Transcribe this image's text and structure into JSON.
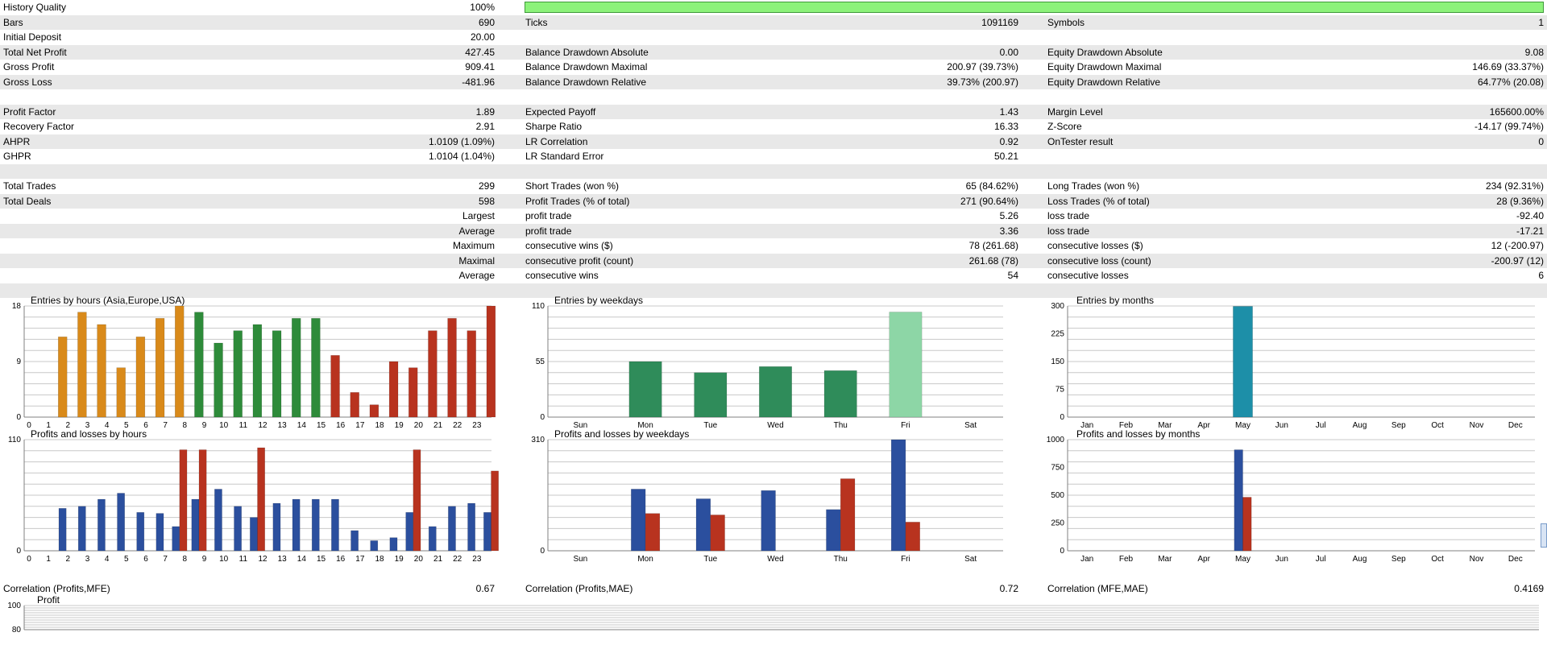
{
  "stats": {
    "history_quality": {
      "label": "History Quality",
      "value": "100%",
      "fraction": 1.0
    },
    "rows": [
      {
        "shade": false,
        "c1": "",
        "v1": "",
        "c2": "",
        "v2": "",
        "c3": "",
        "v3": ""
      },
      {
        "shade": true,
        "c1": "Bars",
        "v1": "690",
        "c2": "Ticks",
        "v2": "1091169",
        "c3": "Symbols",
        "v3": "1"
      },
      {
        "shade": false,
        "c1": "Initial Deposit",
        "v1": "20.00",
        "c2": "",
        "v2": "",
        "c3": "",
        "v3": ""
      },
      {
        "shade": true,
        "c1": "Total Net Profit",
        "v1": "427.45",
        "c2": "Balance Drawdown Absolute",
        "v2": "0.00",
        "c3": "Equity Drawdown Absolute",
        "v3": "9.08"
      },
      {
        "shade": false,
        "c1": "Gross Profit",
        "v1": "909.41",
        "c2": "Balance Drawdown Maximal",
        "v2": "200.97 (39.73%)",
        "c3": "Equity Drawdown Maximal",
        "v3": "146.69 (33.37%)"
      },
      {
        "shade": true,
        "c1": "Gross Loss",
        "v1": "-481.96",
        "c2": "Balance Drawdown Relative",
        "v2": "39.73% (200.97)",
        "c3": "Equity Drawdown Relative",
        "v3": "64.77% (20.08)"
      },
      {
        "shade": false,
        "c1": "",
        "v1": "",
        "c2": "",
        "v2": "",
        "c3": "",
        "v3": ""
      },
      {
        "shade": true,
        "c1": "Profit Factor",
        "v1": "1.89",
        "c2": "Expected Payoff",
        "v2": "1.43",
        "c3": "Margin Level",
        "v3": "165600.00%"
      },
      {
        "shade": false,
        "c1": "Recovery Factor",
        "v1": "2.91",
        "c2": "Sharpe Ratio",
        "v2": "16.33",
        "c3": "Z-Score",
        "v3": "-14.17 (99.74%)"
      },
      {
        "shade": true,
        "c1": "AHPR",
        "v1": "1.0109 (1.09%)",
        "c2": "LR Correlation",
        "v2": "0.92",
        "c3": "OnTester result",
        "v3": "0"
      },
      {
        "shade": false,
        "c1": "GHPR",
        "v1": "1.0104 (1.04%)",
        "c2": "LR Standard Error",
        "v2": "50.21",
        "c3": "",
        "v3": ""
      },
      {
        "shade": true,
        "c1": "",
        "v1": "",
        "c2": "",
        "v2": "",
        "c3": "",
        "v3": ""
      },
      {
        "shade": false,
        "c1": "Total Trades",
        "v1": "299",
        "c2": "Short Trades (won %)",
        "v2": "65 (84.62%)",
        "c3": "Long Trades (won %)",
        "v3": "234 (92.31%)"
      },
      {
        "shade": true,
        "c1": "Total Deals",
        "v1": "598",
        "c2": "Profit Trades (% of total)",
        "v2": "271 (90.64%)",
        "c3": "Loss Trades (% of total)",
        "v3": "28 (9.36%)"
      },
      {
        "shade": false,
        "c1": "",
        "v1": "Largest",
        "c2": "profit trade",
        "v2": "5.26",
        "c3": "loss trade",
        "v3": "-92.40"
      },
      {
        "shade": true,
        "c1": "",
        "v1": "Average",
        "c2": "profit trade",
        "v2": "3.36",
        "c3": "loss trade",
        "v3": "-17.21"
      },
      {
        "shade": false,
        "c1": "",
        "v1": "Maximum",
        "c2": "consecutive wins ($)",
        "v2": "78 (261.68)",
        "c3": "consecutive losses ($)",
        "v3": "12 (-200.97)"
      },
      {
        "shade": true,
        "c1": "",
        "v1": "Maximal",
        "c2": "consecutive profit (count)",
        "v2": "261.68 (78)",
        "c3": "consecutive loss (count)",
        "v3": "-200.97 (12)"
      },
      {
        "shade": false,
        "c1": "",
        "v1": "Average",
        "c2": "consecutive wins",
        "v2": "54",
        "c3": "consecutive losses",
        "v3": "6"
      },
      {
        "shade": true,
        "c1": "",
        "v1": "",
        "c2": "",
        "v2": "",
        "c3": "",
        "v3": ""
      }
    ]
  },
  "correlation": {
    "mfe_label": "Correlation (Profits,MFE)",
    "mfe_value": "0.67",
    "mae_label": "Correlation (Profits,MAE)",
    "mae_value": "0.72",
    "mfe_mae_label": "Correlation (MFE,MAE)",
    "mfe_mae_value": "0.4169"
  },
  "colors": {
    "grid": "#c8c8c8",
    "orange": "#d98a1a",
    "green": "#2e8b3a",
    "red": "#b8331f",
    "blue": "#2b4f9e",
    "teal": "#2f8c5a",
    "cyan": "#1d8fa8",
    "light_green": "#8dd6a6"
  },
  "chart_data": [
    {
      "id": "entries-hours",
      "type": "bar",
      "title": "Entries by hours (Asia,Europe,USA)",
      "categories": [
        "0",
        "1",
        "2",
        "3",
        "4",
        "5",
        "6",
        "7",
        "8",
        "9",
        "10",
        "11",
        "12",
        "13",
        "14",
        "15",
        "16",
        "17",
        "18",
        "19",
        "20",
        "21",
        "22",
        "23"
      ],
      "values": [
        0,
        13,
        17,
        15,
        8,
        13,
        16,
        18,
        17,
        12,
        14,
        15,
        14,
        16,
        16,
        10,
        4,
        2,
        9,
        8,
        14,
        16,
        14,
        18
      ],
      "ylim": [
        0,
        18
      ],
      "yticks": [
        "0",
        "9",
        "18"
      ],
      "colors_by_index": [
        "orange",
        "orange",
        "orange",
        "orange",
        "orange",
        "orange",
        "orange",
        "orange",
        "green",
        "green",
        "green",
        "green",
        "green",
        "green",
        "green",
        "red",
        "red",
        "red",
        "red",
        "red",
        "red",
        "red",
        "red",
        "red"
      ]
    },
    {
      "id": "entries-weekdays",
      "type": "bar",
      "title": "Entries by weekdays",
      "categories": [
        "Sun",
        "Mon",
        "Tue",
        "Wed",
        "Thu",
        "Fri",
        "Sat"
      ],
      "values": [
        0,
        55,
        44,
        50,
        46,
        104,
        0
      ],
      "ylim": [
        0,
        110
      ],
      "yticks": [
        "0",
        "55",
        "110"
      ],
      "colors_by_index": [
        "teal",
        "teal",
        "teal",
        "teal",
        "teal",
        "light_green",
        "teal"
      ]
    },
    {
      "id": "entries-months",
      "type": "bar",
      "title": "Entries by months",
      "categories": [
        "Jan",
        "Feb",
        "Mar",
        "Apr",
        "May",
        "Jun",
        "Jul",
        "Aug",
        "Sep",
        "Oct",
        "Nov",
        "Dec"
      ],
      "values": [
        0,
        0,
        0,
        0,
        299,
        0,
        0,
        0,
        0,
        0,
        0,
        0
      ],
      "ylim": [
        0,
        300
      ],
      "yticks": [
        "0",
        "75",
        "150",
        "225",
        "300"
      ],
      "colors_by_index": [
        "cyan",
        "cyan",
        "cyan",
        "cyan",
        "cyan",
        "cyan",
        "cyan",
        "cyan",
        "cyan",
        "cyan",
        "cyan",
        "cyan"
      ]
    },
    {
      "id": "pl-hours",
      "type": "bar",
      "title": "Profits and losses by hours",
      "categories": [
        "0",
        "1",
        "2",
        "3",
        "4",
        "5",
        "6",
        "7",
        "8",
        "9",
        "10",
        "11",
        "12",
        "13",
        "14",
        "15",
        "16",
        "17",
        "18",
        "19",
        "20",
        "21",
        "22",
        "23"
      ],
      "series": [
        {
          "values": [
            0,
            42,
            44,
            51,
            57,
            38,
            37,
            24,
            51,
            61,
            44,
            33,
            47,
            51,
            51,
            51,
            20,
            10,
            13,
            38,
            24,
            44,
            47,
            38
          ],
          "color": "blue"
        },
        {
          "values": [
            0,
            0,
            0,
            0,
            0,
            0,
            0,
            100,
            100,
            0,
            0,
            102,
            0,
            0,
            0,
            0,
            0,
            0,
            0,
            100,
            0,
            0,
            0,
            79
          ],
          "color": "red"
        }
      ],
      "grouped": false,
      "ylim": [
        0,
        110
      ],
      "yticks": [
        "0",
        "110"
      ]
    },
    {
      "id": "pl-weekdays",
      "type": "bar",
      "title": "Profits and losses by weekdays",
      "categories": [
        "Sun",
        "Mon",
        "Tue",
        "Wed",
        "Thu",
        "Fri",
        "Sat"
      ],
      "series": [
        {
          "values": [
            0,
            172,
            145,
            168,
            115,
            310,
            0
          ],
          "color": "blue"
        },
        {
          "values": [
            0,
            104,
            100,
            0,
            201,
            80,
            0
          ],
          "color": "red"
        }
      ],
      "grouped": true,
      "ylim": [
        0,
        310
      ],
      "yticks": [
        "0",
        "310"
      ]
    },
    {
      "id": "pl-months",
      "type": "bar",
      "title": "Profits and losses by months",
      "categories": [
        "Jan",
        "Feb",
        "Mar",
        "Apr",
        "May",
        "Jun",
        "Jul",
        "Aug",
        "Sep",
        "Oct",
        "Nov",
        "Dec"
      ],
      "series": [
        {
          "values": [
            0,
            0,
            0,
            0,
            909,
            0,
            0,
            0,
            0,
            0,
            0,
            0
          ],
          "color": "blue"
        },
        {
          "values": [
            0,
            0,
            0,
            0,
            482,
            0,
            0,
            0,
            0,
            0,
            0,
            0
          ],
          "color": "red"
        }
      ],
      "grouped": true,
      "ylim": [
        0,
        1000
      ],
      "yticks": [
        "0",
        "250",
        "500",
        "750",
        "1000"
      ]
    },
    {
      "id": "profit-mfe",
      "type": "scatter",
      "title": "Profit",
      "ylim": [
        80,
        100
      ],
      "yticks": [
        "100",
        "80"
      ],
      "points": []
    }
  ]
}
